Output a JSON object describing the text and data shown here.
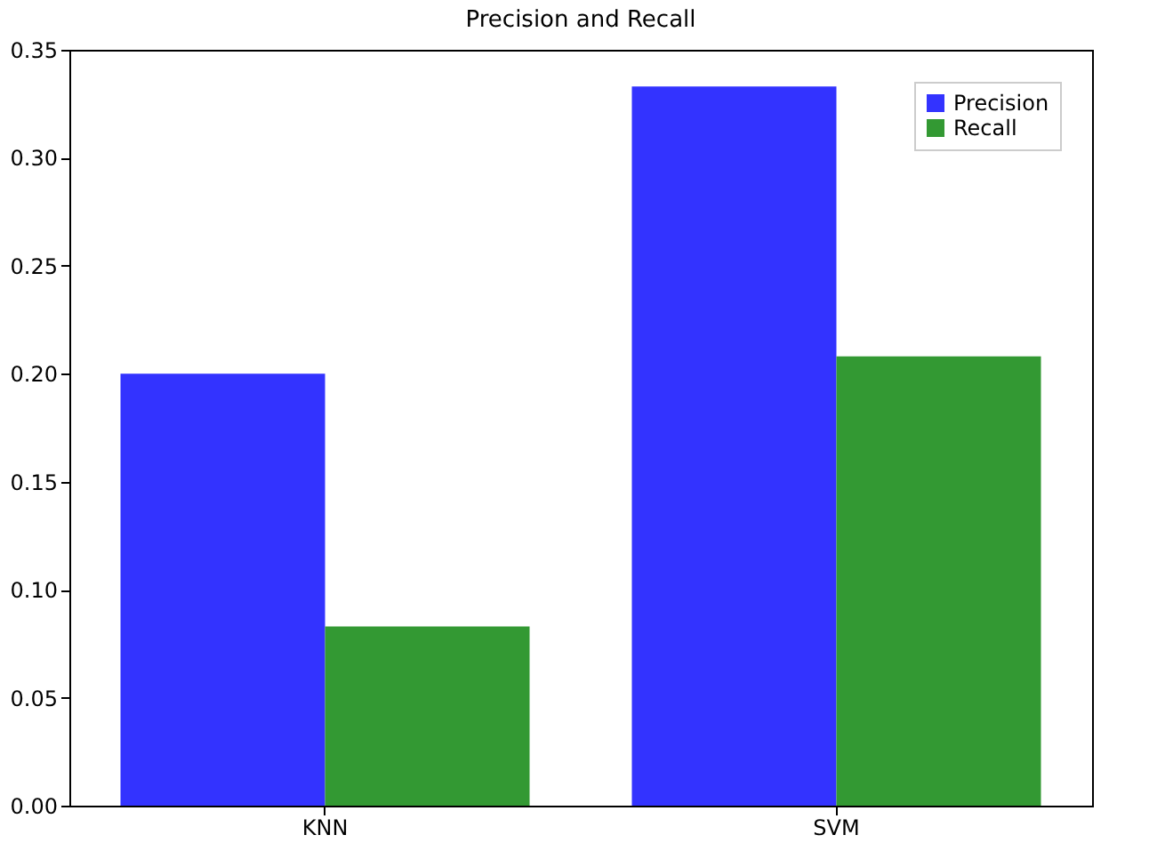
{
  "chart_data": {
    "type": "bar",
    "title": "Precision and Recall",
    "categories": [
      "KNN",
      "SVM"
    ],
    "series": [
      {
        "name": "Precision",
        "color": "#3333ff",
        "values": [
          0.2,
          0.333
        ]
      },
      {
        "name": "Recall",
        "color": "#339933",
        "values": [
          0.083,
          0.208
        ]
      }
    ],
    "ylim": [
      0,
      0.35
    ],
    "yticks": [
      {
        "value": 0,
        "label": "0.00"
      },
      0.05,
      {
        "value": 0.1,
        "label": "0.10"
      },
      0.15,
      {
        "value": 0.2,
        "label": "0.20"
      },
      0.25,
      {
        "value": 0.3,
        "label": "0.30"
      },
      0.35
    ],
    "grid": false,
    "legend": "top right"
  }
}
